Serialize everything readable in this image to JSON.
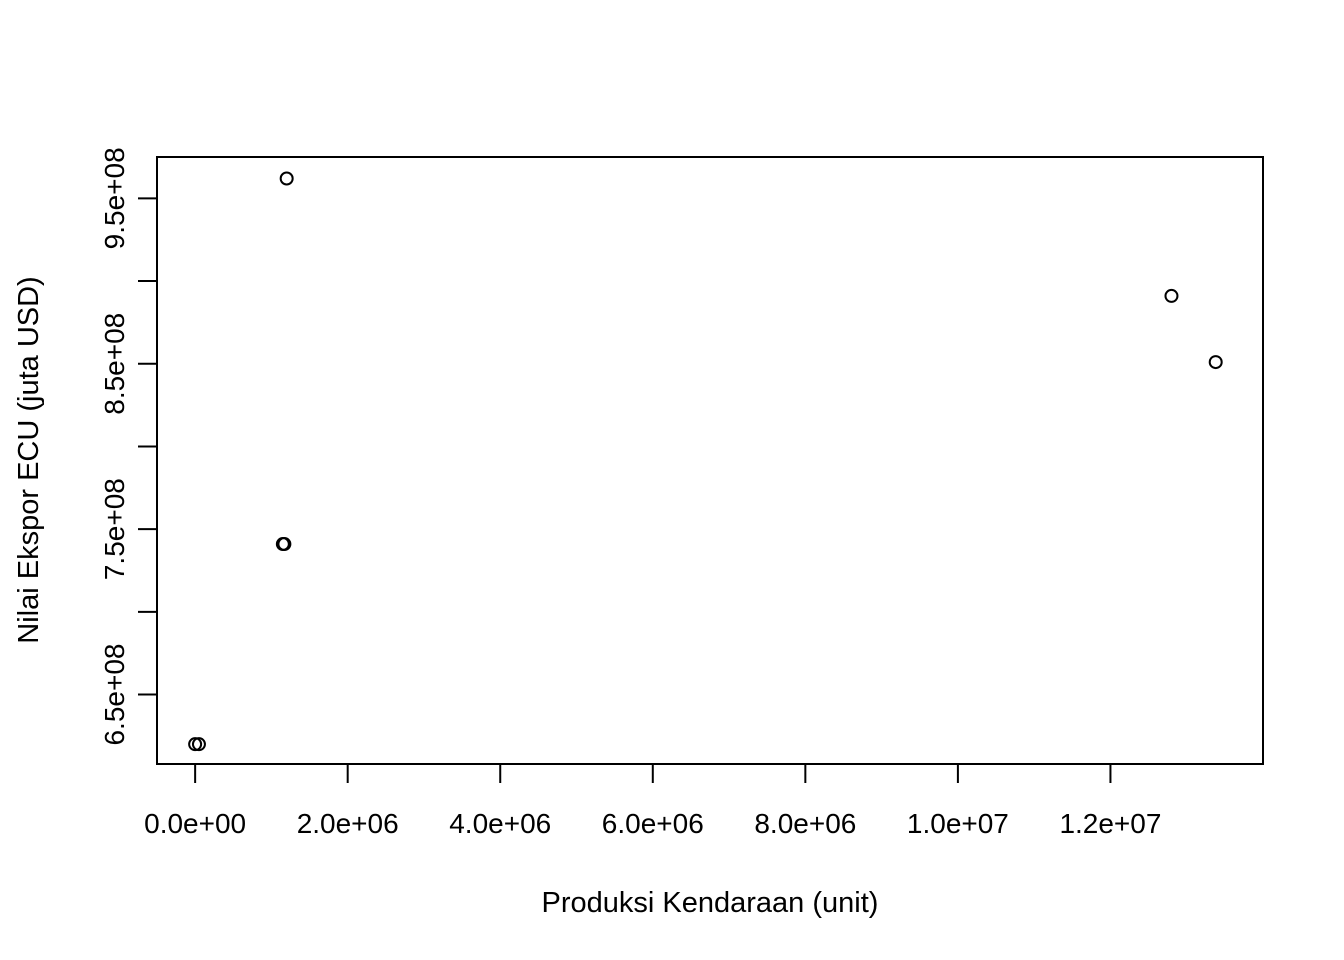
{
  "chart_data": {
    "type": "scatter",
    "title": "",
    "xlabel": "Produksi Kendaraan (unit)",
    "ylabel": "Nilai Ekspor ECU (juta USD)",
    "xlim": [
      -500000,
      14000000
    ],
    "ylim": [
      608000000.0,
      975000000.0
    ],
    "x_ticks": [
      0,
      2000000,
      4000000,
      6000000,
      8000000,
      10000000,
      12000000
    ],
    "x_tick_labels": [
      "0.0e+00",
      "2.0e+06",
      "4.0e+06",
      "6.0e+06",
      "8.0e+06",
      "1.0e+07",
      "1.2e+07"
    ],
    "y_ticks": [
      650000000.0,
      700000000.0,
      750000000.0,
      800000000.0,
      850000000.0,
      900000000.0,
      950000000.0
    ],
    "y_tick_labels": [
      "6.5e+08",
      "",
      "7.5e+08",
      "",
      "8.5e+08",
      "",
      "9.5e+08"
    ],
    "grid": false,
    "points": [
      {
        "x": 0,
        "y": 620000000.0
      },
      {
        "x": 50000,
        "y": 620000000.0
      },
      {
        "x": 1150000,
        "y": 741000000.0
      },
      {
        "x": 1170000,
        "y": 741000000.0
      },
      {
        "x": 1200000,
        "y": 962000000.0
      },
      {
        "x": 12800000,
        "y": 891000000.0
      },
      {
        "x": 13380000,
        "y": 851000000.0
      }
    ]
  }
}
